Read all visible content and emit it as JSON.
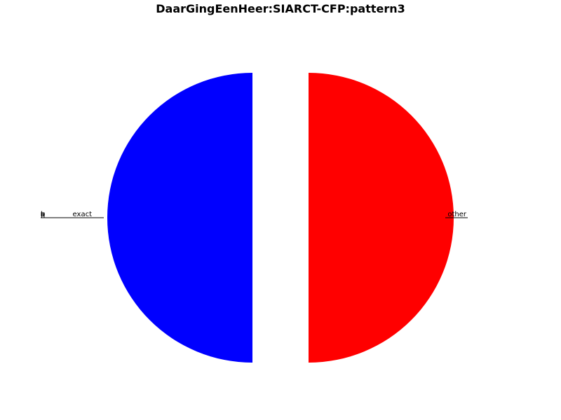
{
  "chart_data": {
    "type": "pie",
    "title": "DaarGingEenHeer:SIARCT-CFP:pattern3",
    "slices": [
      {
        "label": "other",
        "value": 50,
        "color": "#ff0000",
        "explode": true
      },
      {
        "label": "t",
        "value": 0,
        "color": "#00ff00"
      },
      {
        "label": "r",
        "value": 0,
        "color": "#00ffff"
      },
      {
        "label": "a",
        "value": 0,
        "color": "#ff00ff"
      },
      {
        "label": "n",
        "value": 0,
        "color": "#ffff00"
      },
      {
        "label": "s",
        "value": 0,
        "color": "#000000"
      },
      {
        "label": "p",
        "value": 0,
        "color": "#888888"
      },
      {
        "label": "o",
        "value": 0,
        "color": "#008800"
      },
      {
        "label": "q",
        "value": 0,
        "color": "#880000"
      },
      {
        "label": "l",
        "value": 0,
        "color": "#000088"
      },
      {
        "label": "exact",
        "value": 50,
        "color": "#0000ff",
        "explode": true
      }
    ],
    "legend": "none"
  }
}
